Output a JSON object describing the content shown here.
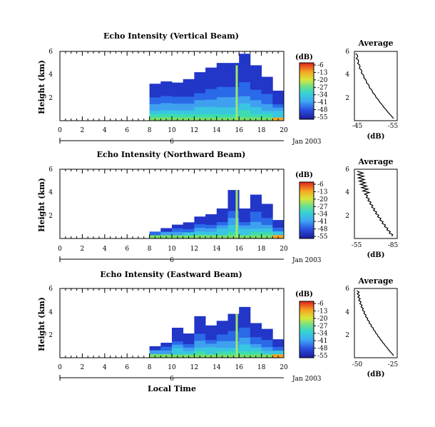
{
  "figure": {
    "xlabel": "Local Time",
    "date_label": "Jan 2003",
    "day_label": "6",
    "units_label": "(dB)",
    "avg_title": "Average",
    "avg_xlabel": "(dB)",
    "ylabel": "Height (km)"
  },
  "chart_data": [
    {
      "type": "heatmap",
      "title": "Echo Intensity (Vertical Beam)",
      "xlabel": "Local Time",
      "ylabel": "Height (km)",
      "xlim": [
        0,
        20
      ],
      "ylim": [
        0,
        6
      ],
      "xticks": [
        "0",
        "2",
        "4",
        "6",
        "8",
        "10",
        "12",
        "14",
        "16",
        "18",
        "20"
      ],
      "yticks": [
        "6",
        "4",
        "2"
      ],
      "colorbar": {
        "label": "(dB)",
        "ticks": [
          "-6",
          "-13",
          "-20",
          "-27",
          "-34",
          "-41",
          "-48",
          "-55"
        ],
        "range": [
          -55,
          -6
        ]
      },
      "columns": [
        {
          "x": 8.5,
          "top": 3.2
        },
        {
          "x": 9.5,
          "top": 3.4
        },
        {
          "x": 10.5,
          "top": 3.3
        },
        {
          "x": 11.5,
          "top": 3.6
        },
        {
          "x": 12.5,
          "top": 4.2
        },
        {
          "x": 13.5,
          "top": 4.6
        },
        {
          "x": 14.5,
          "top": 5.0
        },
        {
          "x": 15.5,
          "top": 5.0
        },
        {
          "x": 16.5,
          "top": 5.8
        },
        {
          "x": 17.5,
          "top": 4.8
        },
        {
          "x": 18.5,
          "top": 3.8
        },
        {
          "x": 19.5,
          "top": 2.6
        }
      ],
      "average": {
        "xlim": [
          -45,
          -55
        ],
        "xticks": [
          "-45",
          "-55"
        ],
        "yticks": [
          "6",
          "4",
          "2"
        ]
      }
    },
    {
      "type": "heatmap",
      "title": "Echo Intensity (Northward Beam)",
      "xlabel": "Local Time",
      "ylabel": "Height (km)",
      "xlim": [
        0,
        20
      ],
      "ylim": [
        0,
        6
      ],
      "xticks": [
        "0",
        "2",
        "4",
        "6",
        "8",
        "10",
        "12",
        "14",
        "16",
        "18",
        "20"
      ],
      "yticks": [
        "6",
        "4",
        "2"
      ],
      "colorbar": {
        "label": "(dB)",
        "ticks": [
          "-6",
          "-13",
          "-20",
          "-27",
          "-34",
          "-41",
          "-48",
          "-55"
        ],
        "range": [
          -55,
          -6
        ]
      },
      "columns": [
        {
          "x": 8.5,
          "top": 0.6
        },
        {
          "x": 9.5,
          "top": 0.9
        },
        {
          "x": 10.5,
          "top": 1.2
        },
        {
          "x": 11.5,
          "top": 1.4
        },
        {
          "x": 12.5,
          "top": 1.9
        },
        {
          "x": 13.5,
          "top": 2.1
        },
        {
          "x": 14.5,
          "top": 2.6
        },
        {
          "x": 15.5,
          "top": 4.2
        },
        {
          "x": 16.5,
          "top": 2.6
        },
        {
          "x": 17.5,
          "top": 3.8
        },
        {
          "x": 18.5,
          "top": 3.0
        },
        {
          "x": 19.5,
          "top": 1.6
        }
      ],
      "average": {
        "xlim": [
          -55,
          -85
        ],
        "xticks": [
          "-55",
          "-85"
        ],
        "yticks": [
          "6",
          "4",
          "2"
        ]
      }
    },
    {
      "type": "heatmap",
      "title": "Echo Intensity (Eastward Beam)",
      "xlabel": "Local Time",
      "ylabel": "Height (km)",
      "xlim": [
        0,
        20
      ],
      "ylim": [
        0,
        6
      ],
      "xticks": [
        "0",
        "2",
        "4",
        "6",
        "8",
        "10",
        "12",
        "14",
        "16",
        "18",
        "20"
      ],
      "yticks": [
        "6",
        "4",
        "2"
      ],
      "colorbar": {
        "label": "(dB)",
        "ticks": [
          "-6",
          "-13",
          "-20",
          "-27",
          "-34",
          "-41",
          "-48",
          "-55"
        ],
        "range": [
          -55,
          -6
        ]
      },
      "columns": [
        {
          "x": 8.5,
          "top": 1.0
        },
        {
          "x": 9.5,
          "top": 1.3
        },
        {
          "x": 10.5,
          "top": 2.6
        },
        {
          "x": 11.5,
          "top": 2.1
        },
        {
          "x": 12.5,
          "top": 3.6
        },
        {
          "x": 13.5,
          "top": 2.8
        },
        {
          "x": 14.5,
          "top": 3.2
        },
        {
          "x": 15.5,
          "top": 3.8
        },
        {
          "x": 16.5,
          "top": 4.4
        },
        {
          "x": 17.5,
          "top": 3.0
        },
        {
          "x": 18.5,
          "top": 2.5
        },
        {
          "x": 19.5,
          "top": 1.6
        }
      ],
      "average": {
        "xlim": [
          -50,
          -25
        ],
        "xticks": [
          "-50",
          "-25"
        ],
        "yticks": [
          "6",
          "4",
          "2"
        ]
      }
    }
  ]
}
